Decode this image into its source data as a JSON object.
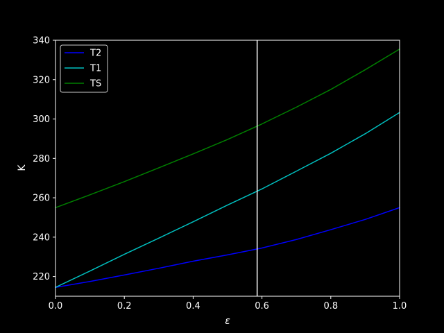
{
  "chart_data": {
    "type": "line",
    "title": "",
    "xlabel": "ε",
    "ylabel": "K",
    "xlim": [
      0.0,
      1.0
    ],
    "ylim": [
      210,
      340
    ],
    "x_ticks": [
      0.0,
      0.2,
      0.4,
      0.6,
      0.8,
      1.0
    ],
    "x_tick_labels": [
      "0.0",
      "0.2",
      "0.4",
      "0.6",
      "0.8",
      "1.0"
    ],
    "y_ticks": [
      220,
      240,
      260,
      280,
      300,
      320,
      340
    ],
    "y_tick_labels": [
      "220",
      "240",
      "260",
      "280",
      "300",
      "320",
      "340"
    ],
    "grid": false,
    "legend_position": "top-left",
    "vertical_line": {
      "x": 0.586,
      "color": "#ffffff"
    },
    "x": [
      0.0,
      0.1,
      0.2,
      0.3,
      0.4,
      0.5,
      0.6,
      0.7,
      0.8,
      0.9,
      1.0
    ],
    "series": [
      {
        "name": "T2",
        "color": "#0000ff",
        "values": [
          214.5,
          217.5,
          220.8,
          224.2,
          227.8,
          231.0,
          234.5,
          238.8,
          243.8,
          249.0,
          255.0
        ]
      },
      {
        "name": "T1",
        "color": "#00bfbf",
        "values": [
          214.5,
          222.8,
          231.3,
          239.5,
          247.8,
          256.3,
          264.5,
          273.5,
          282.6,
          292.5,
          303.3
        ]
      },
      {
        "name": "TS",
        "color": "#007f00",
        "values": [
          255.0,
          261.5,
          268.2,
          275.2,
          282.3,
          289.6,
          297.5,
          306.0,
          315.0,
          325.0,
          335.5
        ]
      }
    ]
  }
}
